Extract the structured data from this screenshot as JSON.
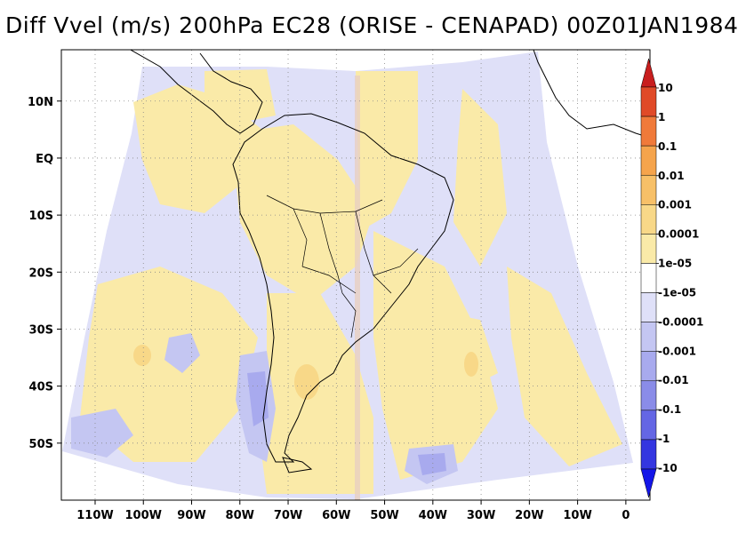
{
  "chart_data": {
    "type": "heatmap",
    "title": "Diff Vvel (m/s) 200hPa EC28 (ORISE - CENAPAD) 00Z01JAN1984",
    "xlabel": "",
    "ylabel": "",
    "x_range": [
      -117,
      5
    ],
    "y_range": [
      -60,
      19
    ],
    "x_ticks": [
      {
        "value": -110,
        "label": "110W"
      },
      {
        "value": -100,
        "label": "100W"
      },
      {
        "value": -90,
        "label": "90W"
      },
      {
        "value": -80,
        "label": "80W"
      },
      {
        "value": -70,
        "label": "70W"
      },
      {
        "value": -60,
        "label": "60W"
      },
      {
        "value": -50,
        "label": "50W"
      },
      {
        "value": -40,
        "label": "40W"
      },
      {
        "value": -30,
        "label": "30W"
      },
      {
        "value": -20,
        "label": "20W"
      },
      {
        "value": -10,
        "label": "10W"
      },
      {
        "value": 0,
        "label": "0"
      }
    ],
    "y_ticks": [
      {
        "value": 10,
        "label": "10N"
      },
      {
        "value": 0,
        "label": "EQ"
      },
      {
        "value": -10,
        "label": "10S"
      },
      {
        "value": -20,
        "label": "20S"
      },
      {
        "value": -30,
        "label": "30S"
      },
      {
        "value": -40,
        "label": "40S"
      },
      {
        "value": -50,
        "label": "50S"
      }
    ],
    "grid": "dotted",
    "colorbar": {
      "placement": "right",
      "levels": [
        "10",
        "1",
        "0.1",
        "0.01",
        "0.001",
        "0.0001",
        "1e-05",
        "-1e-05",
        "-0.0001",
        "-0.001",
        "-0.01",
        "-0.1",
        "-1",
        "-10"
      ],
      "colors": [
        "#c81e1e",
        "#e04a28",
        "#f07a3a",
        "#f5a44c",
        "#f7c068",
        "#f8d888",
        "#faeaa8",
        "#ffffff",
        "#dfe0f8",
        "#c4c6f2",
        "#a8aaee",
        "#8a8ce8",
        "#6466e4",
        "#3436e0",
        "#1416e8"
      ]
    }
  }
}
